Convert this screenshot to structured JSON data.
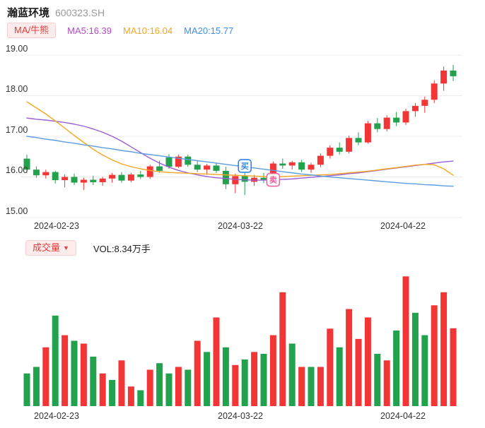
{
  "header": {
    "title": "瀚蓝环境",
    "code": "600323.SH"
  },
  "legend": {
    "indicator_button": "MA/牛熊",
    "ma5": {
      "label": "MA5:16.39",
      "color": "#b34cc6"
    },
    "ma10": {
      "label": "MA10:16.04",
      "color": "#f5a623"
    },
    "ma20": {
      "label": "MA20:15.77",
      "color": "#3f8fe6"
    }
  },
  "volume_section": {
    "button_label": "成交量",
    "caret": "▼",
    "vol_label": "VOL:8.34万手"
  },
  "colors": {
    "up": "#f23636",
    "down": "#23a24d",
    "grid": "#ececec",
    "axis_text": "#333333"
  },
  "chart_data": {
    "type": "candlestick+volume",
    "title": "瀚蓝环境 600323.SH 日K线",
    "price": {
      "y_ticks": [
        "19.00",
        "18.00",
        "17.00",
        "16.00",
        "15.00"
      ],
      "y_range": [
        15.0,
        19.0
      ],
      "x_tick_labels": [
        "2024-02-23",
        "2024-03-22",
        "2024-04-22"
      ],
      "dates": [
        "2024-02-21",
        "2024-02-22",
        "2024-02-23",
        "2024-02-26",
        "2024-02-27",
        "2024-02-28",
        "2024-02-29",
        "2024-03-01",
        "2024-03-04",
        "2024-03-05",
        "2024-03-06",
        "2024-03-07",
        "2024-03-08",
        "2024-03-11",
        "2024-03-12",
        "2024-03-13",
        "2024-03-14",
        "2024-03-15",
        "2024-03-18",
        "2024-03-19",
        "2024-03-20",
        "2024-03-21",
        "2024-03-22",
        "2024-03-25",
        "2024-03-26",
        "2024-03-27",
        "2024-03-28",
        "2024-03-29",
        "2024-04-01",
        "2024-04-02",
        "2024-04-03",
        "2024-04-08",
        "2024-04-09",
        "2024-04-10",
        "2024-04-11",
        "2024-04-12",
        "2024-04-15",
        "2024-04-16",
        "2024-04-17",
        "2024-04-18",
        "2024-04-19",
        "2024-04-22",
        "2024-04-23",
        "2024-04-24",
        "2024-04-25",
        "2024-04-26"
      ],
      "candles_format": [
        "open",
        "high",
        "low",
        "close"
      ],
      "candles": [
        [
          16.45,
          16.55,
          16.1,
          16.18
        ],
        [
          16.18,
          16.26,
          15.98,
          16.04
        ],
        [
          16.04,
          16.18,
          15.96,
          16.12
        ],
        [
          16.12,
          16.15,
          15.84,
          15.92
        ],
        [
          15.92,
          16.06,
          15.74,
          16.0
        ],
        [
          16.0,
          16.08,
          15.8,
          15.86
        ],
        [
          15.86,
          15.98,
          15.68,
          15.93
        ],
        [
          15.93,
          16.03,
          15.8,
          15.87
        ],
        [
          15.87,
          16.0,
          15.78,
          15.96
        ],
        [
          15.96,
          16.1,
          15.86,
          16.05
        ],
        [
          16.05,
          16.12,
          15.86,
          15.91
        ],
        [
          15.91,
          16.1,
          15.87,
          16.06
        ],
        [
          16.06,
          16.15,
          15.95,
          16.0
        ],
        [
          16.0,
          16.3,
          15.95,
          16.26
        ],
        [
          16.26,
          16.4,
          16.1,
          16.15
        ],
        [
          16.48,
          16.56,
          16.2,
          16.25
        ],
        [
          16.25,
          16.55,
          16.22,
          16.5
        ],
        [
          16.5,
          16.55,
          16.25,
          16.3
        ],
        [
          16.3,
          16.4,
          16.12,
          16.18
        ],
        [
          16.18,
          16.32,
          16.05,
          16.28
        ],
        [
          16.28,
          16.35,
          16.1,
          16.15
        ],
        [
          16.15,
          16.25,
          15.7,
          15.82
        ],
        [
          15.82,
          16.08,
          15.6,
          16.02
        ],
        [
          16.02,
          16.12,
          15.55,
          15.88
        ],
        [
          15.88,
          16.05,
          15.78,
          15.98
        ],
        [
          15.98,
          16.1,
          15.85,
          15.92
        ],
        [
          15.92,
          16.38,
          15.9,
          16.33
        ],
        [
          16.33,
          16.45,
          16.2,
          16.28
        ],
        [
          16.28,
          16.4,
          16.18,
          16.36
        ],
        [
          16.36,
          16.42,
          16.12,
          16.18
        ],
        [
          16.18,
          16.35,
          16.1,
          16.3
        ],
        [
          16.3,
          16.58,
          16.24,
          16.52
        ],
        [
          16.52,
          16.78,
          16.45,
          16.72
        ],
        [
          16.72,
          16.85,
          16.55,
          16.62
        ],
        [
          16.62,
          17.02,
          16.58,
          16.96
        ],
        [
          16.96,
          17.1,
          16.78,
          16.85
        ],
        [
          16.85,
          17.38,
          16.82,
          17.32
        ],
        [
          17.32,
          17.45,
          17.1,
          17.18
        ],
        [
          17.18,
          17.52,
          17.12,
          17.46
        ],
        [
          17.46,
          17.6,
          17.25,
          17.34
        ],
        [
          17.34,
          17.68,
          17.28,
          17.62
        ],
        [
          17.62,
          17.82,
          17.48,
          17.75
        ],
        [
          17.75,
          17.98,
          17.58,
          17.9
        ],
        [
          17.9,
          18.38,
          17.82,
          18.3
        ],
        [
          18.3,
          18.72,
          18.12,
          18.62
        ],
        [
          18.62,
          18.76,
          18.36,
          18.48
        ]
      ],
      "ma_lines": [
        {
          "name": "MA5",
          "color": "#9a5fd6",
          "values": [
            17.45,
            17.42,
            17.4,
            17.37,
            17.34,
            17.3,
            17.25,
            17.18,
            17.1,
            17.0,
            16.88,
            16.74,
            16.6,
            16.46,
            16.34,
            16.24,
            16.16,
            16.1,
            16.05,
            16.01,
            15.98,
            15.96,
            15.94,
            15.93,
            15.92,
            15.92,
            15.93,
            15.94,
            15.95,
            15.97,
            15.99,
            16.01,
            16.03,
            16.05,
            16.08,
            16.1,
            16.13,
            16.16,
            16.19,
            16.22,
            16.25,
            16.28,
            16.31,
            16.34,
            16.37,
            16.39
          ]
        },
        {
          "name": "MA10",
          "color": "#f5a623",
          "values": [
            17.85,
            17.7,
            17.55,
            17.38,
            17.2,
            17.02,
            16.85,
            16.68,
            16.54,
            16.42,
            16.32,
            16.25,
            16.2,
            16.16,
            16.13,
            16.11,
            16.1,
            16.09,
            16.08,
            16.07,
            16.06,
            16.05,
            16.04,
            16.03,
            16.02,
            16.01,
            16.01,
            16.01,
            16.02,
            16.03,
            16.04,
            16.05,
            16.06,
            16.08,
            16.1,
            16.12,
            16.14,
            16.17,
            16.2,
            16.23,
            16.26,
            16.29,
            16.31,
            16.3,
            16.2,
            16.04
          ]
        },
        {
          "name": "MA20",
          "color": "#5b9de0",
          "values": [
            17.0,
            16.97,
            16.93,
            16.9,
            16.86,
            16.83,
            16.79,
            16.76,
            16.72,
            16.69,
            16.65,
            16.62,
            16.58,
            16.55,
            16.52,
            16.49,
            16.46,
            16.43,
            16.4,
            16.37,
            16.34,
            16.31,
            16.28,
            16.25,
            16.22,
            16.19,
            16.16,
            16.13,
            16.1,
            16.07,
            16.05,
            16.02,
            16.0,
            15.98,
            15.96,
            15.94,
            15.92,
            15.9,
            15.88,
            15.86,
            15.84,
            15.83,
            15.81,
            15.8,
            15.78,
            15.77
          ]
        }
      ],
      "markers": [
        {
          "type": "buy",
          "label": "买",
          "index": 23,
          "price": 16.27,
          "color": "#2f86eb"
        },
        {
          "type": "sell",
          "label": "卖",
          "index": 26,
          "price": 15.93,
          "color": "#f0629c"
        }
      ]
    },
    "volume": {
      "unit": "万手",
      "latest": "8.34",
      "values": [
        3.5,
        4.2,
        6.3,
        9.7,
        7.6,
        7.0,
        6.7,
        5.3,
        3.5,
        2.8,
        4.9,
        2.1,
        1.7,
        3.9,
        4.6,
        3.5,
        4.2,
        3.9,
        7.0,
        5.8,
        9.5,
        6.3,
        4.4,
        5.0,
        5.8,
        5.6,
        7.6,
        12.2,
        6.7,
        4.2,
        4.2,
        4.2,
        8.3,
        6.3,
        10.4,
        7.2,
        9.5,
        5.6,
        4.9,
        8.1,
        13.9,
        10.0,
        7.6,
        10.8,
        12.2,
        8.34
      ],
      "colors": [
        "g",
        "g",
        "r",
        "g",
        "r",
        "g",
        "r",
        "g",
        "r",
        "g",
        "r",
        "r",
        "g",
        "r",
        "g",
        "g",
        "r",
        "g",
        "r",
        "g",
        "r",
        "g",
        "r",
        "g",
        "r",
        "g",
        "r",
        "r",
        "g",
        "r",
        "g",
        "r",
        "r",
        "g",
        "r",
        "r",
        "r",
        "g",
        "r",
        "g",
        "r",
        "g",
        "g",
        "r",
        "r",
        "r"
      ]
    }
  }
}
